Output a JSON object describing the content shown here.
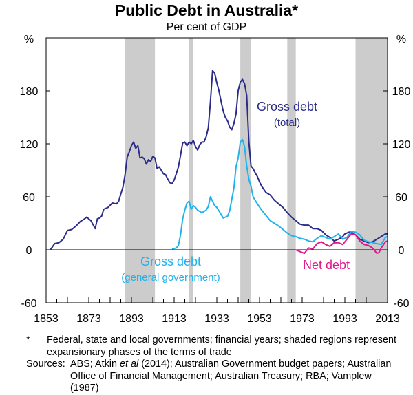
{
  "header": {
    "title": "Public Debt in Australia*",
    "subtitle": "Per cent of GDP"
  },
  "chart_data": {
    "type": "line",
    "title": "Public Debt in Australia*",
    "subtitle": "Per cent of GDP",
    "ylabel_left": "%",
    "ylabel_right": "%",
    "xlim": [
      1853,
      2013
    ],
    "ylim": [
      -60,
      240
    ],
    "x_ticks": [
      1853,
      1873,
      1893,
      1913,
      1933,
      1953,
      1973,
      1993,
      2013
    ],
    "y_ticks": [
      -60,
      0,
      60,
      120,
      180
    ],
    "grid": false,
    "colors": {
      "gross_total": "#2b2c8a",
      "gross_general": "#1fb2ec",
      "net": "#e3168c",
      "shade": "#cccccc"
    },
    "shaded_regions": [
      [
        1890,
        1904
      ],
      [
        1920,
        1922
      ],
      [
        1944,
        1949
      ],
      [
        1966,
        1970
      ],
      [
        1998,
        2013
      ]
    ],
    "series": [
      {
        "name": "Gross debt (total)",
        "label_lines": [
          "Gross debt",
          "(total)"
        ],
        "x": [
          1855,
          1857,
          1859,
          1861,
          1863,
          1865,
          1867,
          1869,
          1871,
          1872,
          1874,
          1876,
          1877,
          1878,
          1879,
          1880,
          1882,
          1884,
          1886,
          1887,
          1888,
          1889,
          1890,
          1891,
          1892,
          1893,
          1894,
          1895,
          1896,
          1897,
          1898,
          1899,
          1900,
          1901,
          1902,
          1903,
          1904,
          1905,
          1906,
          1907,
          1908,
          1909,
          1910,
          1911,
          1912,
          1913,
          1914,
          1915,
          1916,
          1917,
          1918,
          1919,
          1920,
          1921,
          1922,
          1923,
          1924,
          1925,
          1926,
          1927,
          1928,
          1929,
          1930,
          1931,
          1932,
          1933,
          1934,
          1935,
          1936,
          1937,
          1938,
          1939,
          1940,
          1941,
          1942,
          1943,
          1944,
          1945,
          1946,
          1947,
          1948,
          1949,
          1950,
          1951,
          1952,
          1953,
          1954,
          1956,
          1958,
          1960,
          1962,
          1964,
          1966,
          1968,
          1970,
          1972,
          1974,
          1976,
          1978,
          1980,
          1982,
          1984,
          1986,
          1988,
          1990,
          1992,
          1993,
          1994,
          1995,
          1996,
          1998,
          2000,
          2002,
          2004,
          2006,
          2008,
          2010,
          2012,
          2013
        ],
        "values": [
          0,
          7,
          8,
          12,
          22,
          23,
          27,
          32,
          35,
          37,
          33,
          24,
          35,
          36,
          38,
          46,
          48,
          53,
          52,
          55,
          63,
          71,
          85,
          105,
          111,
          118,
          122,
          115,
          118,
          104,
          105,
          103,
          97,
          102,
          100,
          106,
          104,
          92,
          94,
          90,
          86,
          85,
          80,
          76,
          75,
          79,
          86,
          94,
          107,
          121,
          122,
          118,
          122,
          120,
          124,
          117,
          113,
          119,
          122,
          122,
          128,
          138,
          168,
          203,
          200,
          189,
          180,
          168,
          157,
          150,
          146,
          139,
          136,
          143,
          154,
          180,
          190,
          193,
          188,
          175,
          123,
          95,
          92,
          87,
          83,
          77,
          72,
          65,
          62,
          56,
          52,
          48,
          42,
          37,
          33,
          29,
          28,
          28,
          24,
          24,
          22,
          17,
          14,
          10,
          12,
          15,
          18,
          19,
          20,
          20,
          17,
          12,
          10,
          8,
          9,
          12,
          15,
          18,
          18
        ]
      },
      {
        "name": "Gross debt (general government)",
        "label_lines": [
          "Gross debt",
          "(general government)"
        ],
        "x": [
          1912,
          1914,
          1915,
          1916,
          1917,
          1918,
          1919,
          1920,
          1921,
          1922,
          1923,
          1924,
          1926,
          1928,
          1929,
          1930,
          1931,
          1932,
          1933,
          1934,
          1935,
          1936,
          1937,
          1938,
          1939,
          1940,
          1941,
          1942,
          1943,
          1944,
          1945,
          1946,
          1947,
          1948,
          1949,
          1950,
          1952,
          1954,
          1956,
          1958,
          1960,
          1962,
          1964,
          1966,
          1968,
          1970,
          1972,
          1974,
          1976,
          1978,
          1980,
          1982,
          1984,
          1986,
          1988,
          1990,
          1992,
          1994,
          1996,
          1998,
          2000,
          2002,
          2004,
          2006,
          2008,
          2010,
          2012,
          2013
        ],
        "values": [
          1,
          2,
          5,
          17,
          35,
          45,
          53,
          55,
          46,
          50,
          48,
          45,
          42,
          45,
          49,
          60,
          55,
          50,
          48,
          44,
          40,
          36,
          37,
          38,
          44,
          57,
          70,
          94,
          104,
          122,
          125,
          117,
          95,
          80,
          72,
          60,
          52,
          45,
          39,
          33,
          30,
          27,
          23,
          19,
          16,
          15,
          13,
          12,
          10,
          9,
          13,
          16,
          14,
          12,
          15,
          18,
          12,
          14,
          21,
          20,
          17,
          11,
          9,
          8,
          7,
          6,
          14,
          15
        ]
      },
      {
        "name": "Net debt",
        "label_lines": [
          "Net debt"
        ],
        "x": [
          1970,
          1972,
          1974,
          1975,
          1976,
          1978,
          1980,
          1982,
          1984,
          1986,
          1988,
          1990,
          1992,
          1994,
          1996,
          1998,
          2000,
          2002,
          2004,
          2006,
          2008,
          2009,
          2010,
          2012,
          2013
        ],
        "values": [
          0,
          -2,
          -4,
          -1,
          2,
          1,
          7,
          9,
          6,
          4,
          8,
          8,
          6,
          12,
          18,
          17,
          10,
          6,
          5,
          2,
          -4,
          -3,
          2,
          9,
          10
        ]
      }
    ]
  },
  "footnote": {
    "marker": "*",
    "text": "Federal, state and local governments; financial years; shaded regions represent expansionary phases of the terms of trade"
  },
  "sources": {
    "label": "Sources:",
    "text_pre": "ABS; Atkin ",
    "text_italic": "et al",
    "text_post": " (2014); Australian Government budget papers; Australian Office of Financial Management; Australian Treasury; RBA; Vamplew (1987)"
  }
}
